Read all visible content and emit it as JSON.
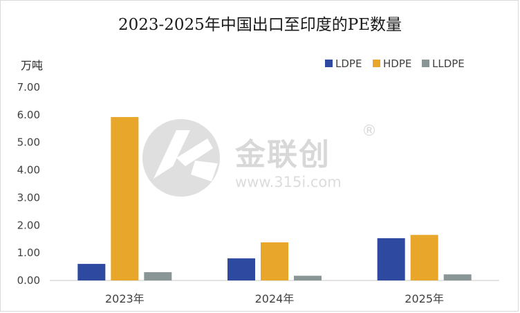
{
  "chart_data": {
    "type": "bar",
    "title": "2023-2025年中国出口至印度的PE数量",
    "ylabel": "万吨",
    "xlabel": "",
    "categories": [
      "2023年",
      "2024年",
      "2025年"
    ],
    "series": [
      {
        "name": "LDPE",
        "color": "#2e4aa0",
        "values": [
          0.6,
          0.8,
          1.53
        ]
      },
      {
        "name": "HDPE",
        "color": "#e8a72a",
        "values": [
          5.92,
          1.38,
          1.65
        ]
      },
      {
        "name": "LLDPE",
        "color": "#8a9595",
        "values": [
          0.3,
          0.17,
          0.22
        ]
      }
    ],
    "ylim": [
      0,
      7
    ],
    "yticks": [
      "0.00",
      "1.00",
      "2.00",
      "3.00",
      "4.00",
      "5.00",
      "6.00",
      "7.00"
    ],
    "grid": false,
    "legend": "top-right"
  },
  "watermark": {
    "brand": "金联创",
    "registered": "®",
    "url": "www.315i.com",
    "logo_icon": "jinlianchuang-logo-icon"
  }
}
